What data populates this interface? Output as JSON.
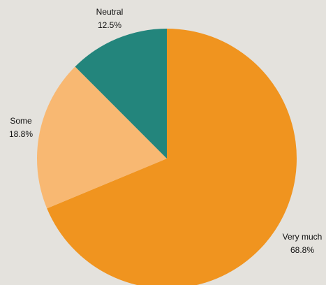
{
  "chart_data": {
    "type": "pie",
    "title": "",
    "start_angle_deg": 0,
    "direction": "clockwise",
    "slices": [
      {
        "label": "Very much",
        "value": 68.8,
        "display": "68.8%",
        "color": "#f0941f"
      },
      {
        "label": "Some",
        "value": 18.8,
        "display": "18.8%",
        "color": "#f8b872"
      },
      {
        "label": "Neutral",
        "value": 12.5,
        "display": "12.5%",
        "color": "#23857c"
      }
    ]
  }
}
